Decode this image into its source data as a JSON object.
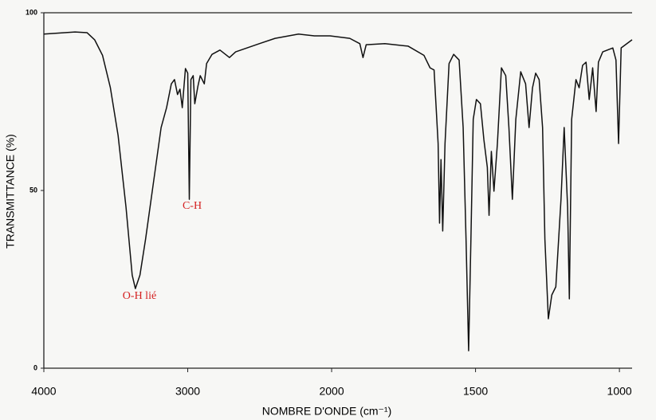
{
  "chart_data": {
    "type": "line",
    "xlabel": "NOMBRE D'ONDE (cm⁻¹)",
    "ylabel": "TRANSMITTANCE (%)",
    "annotations": [
      "O-H lié",
      "C-H"
    ],
    "annotation_color": "#d42020",
    "xlim": [
      4000,
      956
    ],
    "xticks": [
      4000,
      3000,
      2000,
      1500,
      1000
    ],
    "ylim": [
      0,
      100
    ],
    "yticks": [
      0,
      50,
      100
    ],
    "grid": false,
    "color": "#111111",
    "x": [
      4000,
      3783,
      3700,
      3647,
      3592,
      3538,
      3484,
      3429,
      3386,
      3364,
      3332,
      3293,
      3239,
      3185,
      3147,
      3114,
      3092,
      3071,
      3054,
      3038,
      3016,
      3000,
      2989,
      2978,
      2962,
      2951,
      2929,
      2913,
      2885,
      2869,
      2831,
      2776,
      2710,
      2667,
      2503,
      2393,
      2230,
      2120,
      2011,
      1937,
      1902,
      1891,
      1880,
      1815,
      1734,
      1679,
      1658,
      1644,
      1630,
      1625,
      1620,
      1614,
      1606,
      1592,
      1576,
      1557,
      1543,
      1533,
      1524,
      1516,
      1508,
      1497,
      1483,
      1471,
      1459,
      1453,
      1445,
      1436,
      1424,
      1410,
      1395,
      1384,
      1372,
      1360,
      1343,
      1326,
      1314,
      1302,
      1291,
      1279,
      1267,
      1259,
      1247,
      1235,
      1221,
      1203,
      1192,
      1180,
      1174,
      1166,
      1151,
      1140,
      1128,
      1116,
      1105,
      1093,
      1081,
      1073,
      1058,
      1023,
      1012,
      1003,
      994,
      956
    ],
    "values": [
      94,
      94.6,
      94.4,
      92.4,
      88,
      79,
      65.5,
      45.3,
      26.2,
      22.4,
      26.2,
      36.3,
      52,
      67.7,
      73.3,
      80,
      81.2,
      77,
      78.5,
      73.3,
      84.3,
      83,
      47.5,
      81.2,
      82.3,
      74.4,
      79.4,
      82.3,
      80,
      85.7,
      88.3,
      89.5,
      87.4,
      89,
      91.3,
      92.8,
      94,
      93.5,
      93.5,
      92.8,
      91.3,
      87.4,
      91,
      91.3,
      90.6,
      88,
      84.5,
      83.9,
      63.2,
      40.8,
      58.7,
      38.6,
      63.2,
      85.7,
      88.3,
      86.7,
      67.7,
      36.3,
      4.9,
      36.3,
      70,
      75.6,
      74.4,
      64.3,
      56.5,
      43,
      61,
      49.8,
      63.2,
      84.5,
      82.3,
      67.7,
      47.5,
      70,
      83.4,
      80,
      67.7,
      78.9,
      83,
      81.2,
      67.7,
      36.3,
      13.9,
      20.6,
      22.9,
      47.5,
      67.7,
      45.3,
      19.5,
      70,
      81.2,
      78.9,
      85.2,
      86.1,
      75.6,
      84.5,
      72.2,
      86.1,
      89,
      90.1,
      86.7,
      63.2,
      90.1,
      92.4
    ]
  }
}
